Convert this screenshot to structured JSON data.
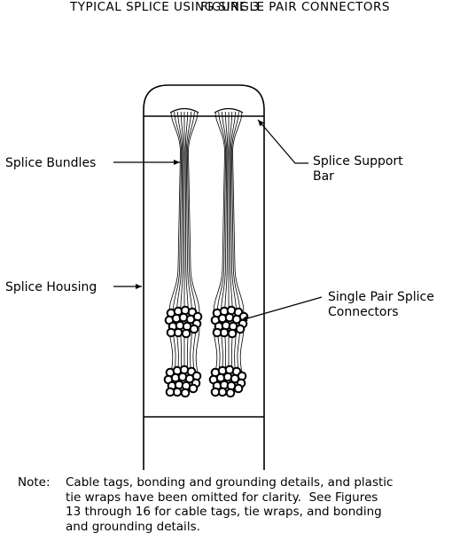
{
  "figure": {
    "number": "FIGURE 3",
    "title": "TYPICAL SPLICE USING SINGLE PAIR CONNECTORS"
  },
  "callouts": {
    "splice_bundles": "Splice Bundles",
    "splice_housing": "Splice Housing",
    "splice_support_bar_line1": "Splice Support",
    "splice_support_bar_line2": "Bar",
    "connectors_line1": "Single Pair Splice",
    "connectors_line2": "Connectors"
  },
  "note": {
    "label": "Note:",
    "text": "Cable tags, bonding and grounding details, and plastic\ntie wraps have been omitted for clarity.  See Figures\n13 through 16 for cable tags, tie wraps, and bonding\nand grounding details."
  }
}
